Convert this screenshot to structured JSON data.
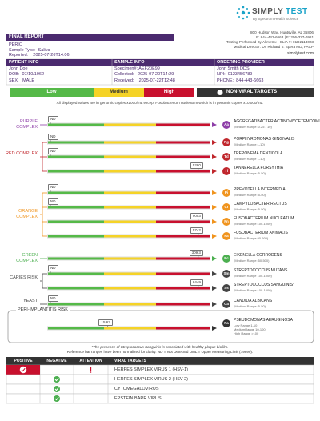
{
  "header": {
    "brand_first": "SIMPLY",
    "brand_second": "TEST",
    "tagline": "By Spectrum Health Science",
    "address": [
      "800 Hudson Way, Huntsville, AL 35806",
      "P: 844-443-6663 | F: 256-327-0981",
      "Testing Performed By Alimetrix - CLIA #: 01D2113023",
      "Medical Director: Dr. Richard V. Spera MD, FACP"
    ],
    "website": "simplytest.com"
  },
  "report": {
    "title": "FINAL REPORT",
    "panel": "PERIO",
    "sample_type": "Sample Type:  Saliva",
    "reported": "Reported:    2025-07-26T14:06"
  },
  "info": {
    "headers": [
      "PATIENT INFO",
      "SAMPLE INFO",
      "ORDERING PROVIDER"
    ],
    "rows": [
      [
        "John Doe",
        "Specimen#: AEF20E99",
        "John Smith DDS"
      ],
      [
        "DOB:  07/10/1962",
        "Collected:   2025-07-20T14:29",
        "NPI:  0123456789"
      ],
      [
        "SEX:   MALE",
        "Received:    2025-07-22T12:48",
        "PHONE:  844-443-6663"
      ]
    ]
  },
  "legend": {
    "low": "Low",
    "medium": "Medium",
    "high": "High",
    "targets": "NON-VIRAL TARGETS"
  },
  "note": "All displayed values are in genomic copies x1000/mL except Fusobacterium nucleatum which is in genomic copies x10,000/mL.",
  "groups": [
    {
      "label": "PURPLE COMPLEX",
      "color": "#8e3fa8",
      "targets": [
        {
          "abbr": "Aa",
          "name": "AGGREGATIBACTER ACTINOMYCETEMCOMITANS",
          "range": "(Medium Range: 0.25 - 10)",
          "value": "ND"
        }
      ]
    },
    {
      "label": "RED COMPLEX",
      "color": "#c0272d",
      "targets": [
        {
          "abbr": "Pg",
          "name": "PORPHYROMONAS GINGIVALIS",
          "range": "(Medium Range:1-10)",
          "value": "ND"
        },
        {
          "abbr": "Td",
          "name": "TREPONEMA DENTICOLA",
          "range": "(Medium Range 1-10)",
          "value": "ND"
        },
        {
          "abbr": "Tf",
          "name": "TANNERELLA FORSYTHIA",
          "range": "(Medium Range: 5-50)",
          "value": 5280
        }
      ]
    },
    {
      "label": "ORANGE COMPLEX",
      "color": "#f0941e",
      "targets": [
        {
          "abbr": "Pi",
          "name": "PREVOTELLA INTERMEDIA",
          "range": "(Medium Range: 5-50)",
          "value": "ND"
        },
        {
          "abbr": "Cr",
          "name": "CAMPYLOBACTER RECTUS",
          "range": "(Medium Range: 5-50)",
          "value": "ND"
        },
        {
          "abbr": "Fn",
          "name": "FUSOBACTERIUM NUCLEATUM",
          "range": "(Medium Range:100-1000)",
          "value": 9053
        },
        {
          "abbr": "Fa",
          "name": "FUSOBACTERIUM ANIMALIS",
          "range": "(Medium Range:50-500)",
          "value": 5742
        }
      ]
    },
    {
      "label": "GREEN COMPLEX",
      "color": "#4caf50",
      "targets": [
        {
          "abbr": "Ec",
          "name": "EIKENELLA CORRODENS",
          "range": "(Medium Range: 50-500)",
          "value": 309.3
        }
      ]
    },
    {
      "label": "CARIES RISK",
      "color": "#444444",
      "targets": [
        {
          "abbr": "Sm",
          "name": "STREPTOCOCCUS MUTANS",
          "range": "(Medium Range 100-1000)",
          "value": "ND"
        },
        {
          "abbr": "Ss",
          "name": "STREPTOCOCCUS SANGUINIS*",
          "range": "(Medium Range:100-1000)",
          "value": 8449
        }
      ]
    },
    {
      "label": "YEAST",
      "color": "#444444",
      "targets": [
        {
          "abbr": "Ca",
          "name": "CANDIDA ALBICANS",
          "range": "(Medium Range: 5-50)",
          "value": "ND"
        }
      ]
    }
  ],
  "peri": {
    "title": "PERI-IMPLANTITIS RISK",
    "color": "#333333",
    "abbr": "Pa",
    "name": "PSEUDOMONAS AERUGINOSA",
    "ranges": [
      "Low Range 1-10",
      "MediumRange 10-100",
      "High Range >100"
    ],
    "value": 15.63
  },
  "footnotes": [
    "*The presence of Streptococcus Sanguinis is associated with healthy plaque biofilm.",
    "Reference bar ranges have been normalized for clarity. ND = Not Detected UML = Upper Measuring Limit (>9999)."
  ],
  "viral": {
    "headers": [
      "POSITIVE",
      "NEGATIVE",
      "ATTENTION",
      "VIRAL TARGETS"
    ],
    "rows": [
      {
        "target": "HERPES SIMPLEX VIRUS 1 (HSV-1)",
        "result": "positive",
        "attention": true
      },
      {
        "target": "HERPES SIMPLEX VIRUS 2 (HSV-2)",
        "result": "negative",
        "attention": false
      },
      {
        "target": "CYTOMEGALOVIRUS",
        "result": "negative",
        "attention": false
      },
      {
        "target": "EPSTEIN BARR VIRUS",
        "result": "negative",
        "attention": false
      }
    ]
  }
}
